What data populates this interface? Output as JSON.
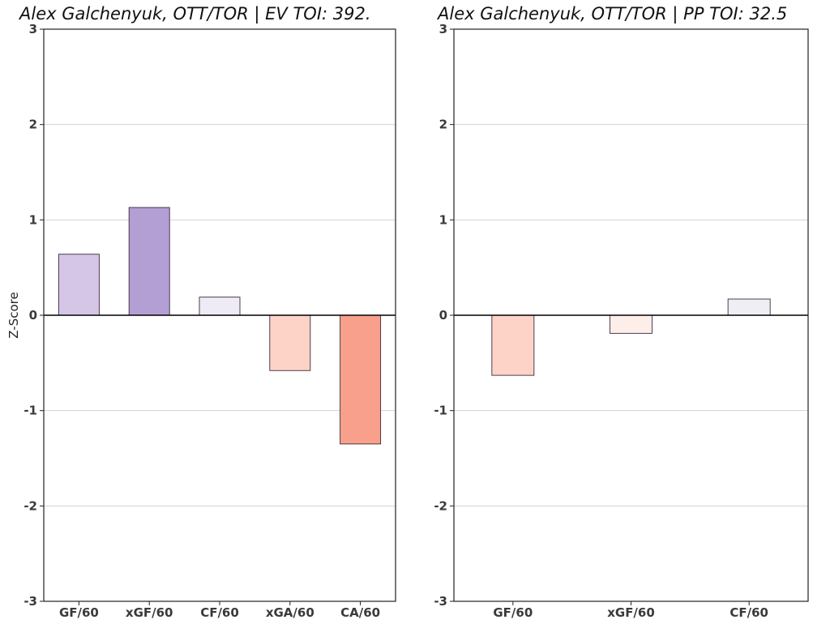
{
  "chart_data": [
    {
      "type": "bar",
      "title": "Alex Galchenyuk, OTT/TOR  |  EV TOI: 392.",
      "xlabel": "",
      "ylabel": "Z-Score",
      "ylim": [
        -3,
        3
      ],
      "yticks": [
        "-3",
        "-2",
        "-1",
        "0",
        "1",
        "2",
        "3"
      ],
      "grid": true,
      "categories": [
        "GF/60",
        "xGF/60",
        "CF/60",
        "xGA/60",
        "CA/60"
      ],
      "values": [
        0.64,
        1.13,
        0.19,
        -0.58,
        -1.35
      ],
      "colors": [
        "#d5c6e7",
        "#b39fd4",
        "#eeebf6",
        "#fdd3c7",
        "#f8a08b"
      ]
    },
    {
      "type": "bar",
      "title": "Alex Galchenyuk, OTT/TOR  |  PP TOI: 32.5",
      "xlabel": "",
      "ylabel": "",
      "ylim": [
        -3,
        3
      ],
      "yticks": [
        "-3",
        "-2",
        "-1",
        "0",
        "1",
        "2",
        "3"
      ],
      "grid": true,
      "categories": [
        "GF/60",
        "xGF/60",
        "CF/60"
      ],
      "values": [
        -0.63,
        -0.19,
        0.17
      ],
      "colors": [
        "#fdd3c7",
        "#fdeee9",
        "#f0eef5"
      ]
    }
  ]
}
